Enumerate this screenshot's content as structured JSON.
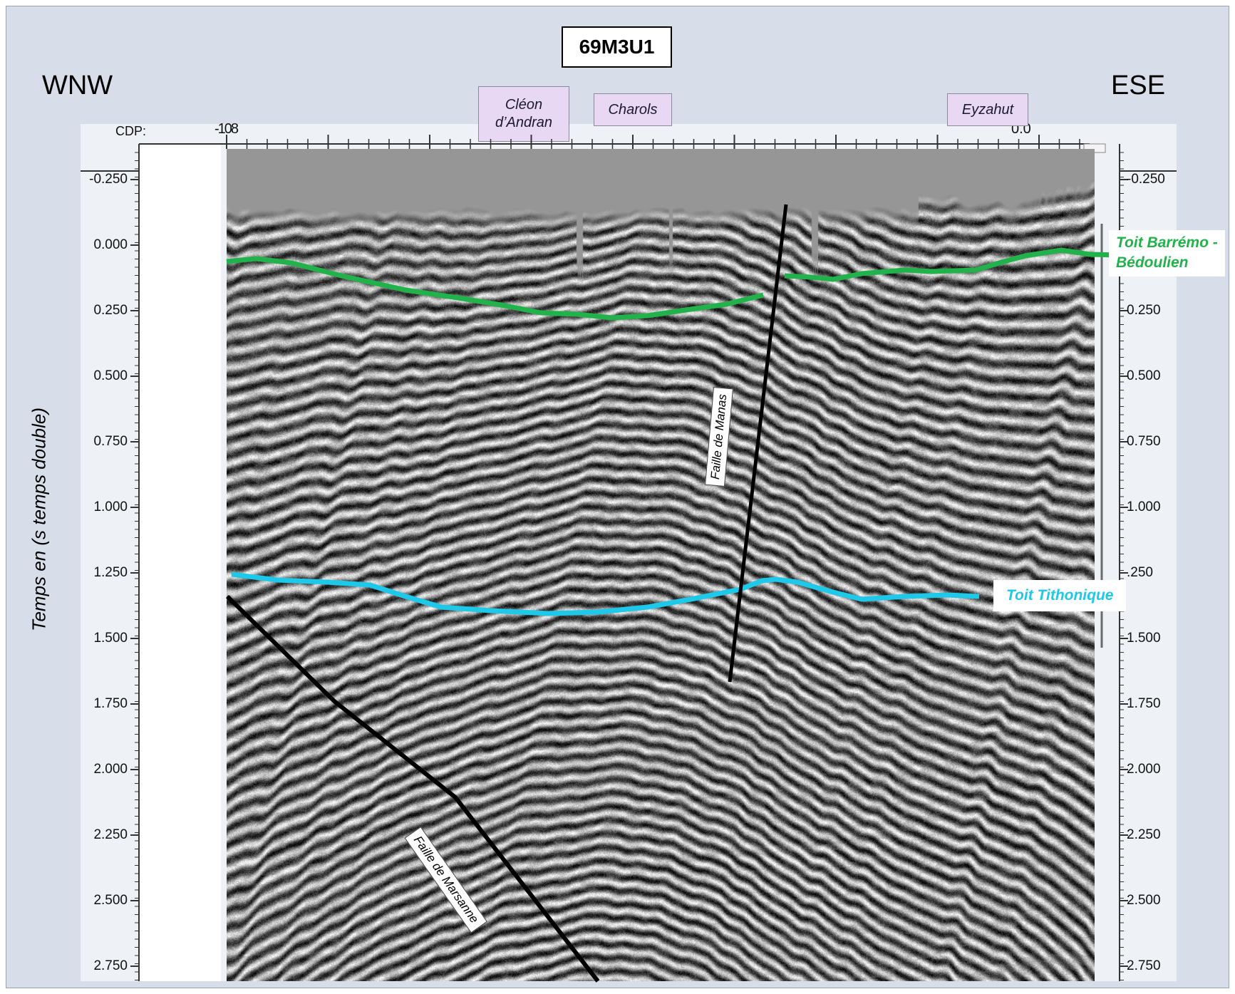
{
  "title": "69M3U1",
  "direction_left": "WNW",
  "direction_right": "ESE",
  "localities": [
    {
      "name": "Cléon\nd’Andran"
    },
    {
      "name": "Charols"
    },
    {
      "name": "Eyzahut"
    }
  ],
  "cdp": {
    "label": "CDP:",
    "start": "-108",
    "end": "0.0"
  },
  "axis": {
    "ylabel": "Temps en (s temps double)",
    "ticks": [
      "-0.250",
      "0.000",
      "0.250",
      "0.500",
      "0.750",
      "1.000",
      "1.250",
      "1.500",
      "1.750",
      "2.000",
      "2.250",
      "2.500",
      "2.750"
    ],
    "right_ticks": [
      "-0.250",
      "",
      "0.250",
      "0.500",
      "0.750",
      "1.000",
      ".250",
      "1.500",
      "1.750",
      "2.000",
      "2.250",
      "2.500",
      "2.750"
    ]
  },
  "horizons": [
    {
      "name": "Toit Barrémo -\nBédoulien",
      "color": "#22b24c"
    },
    {
      "name": "Toit Tithonique",
      "color": "#1ec8e8"
    }
  ],
  "faults": [
    {
      "name": "Faille de Manas"
    },
    {
      "name": "Faille de Marsanne"
    }
  ],
  "colors": {
    "background": "#d8dee9",
    "green": "#22b24c",
    "cyan": "#1ec8e8"
  }
}
